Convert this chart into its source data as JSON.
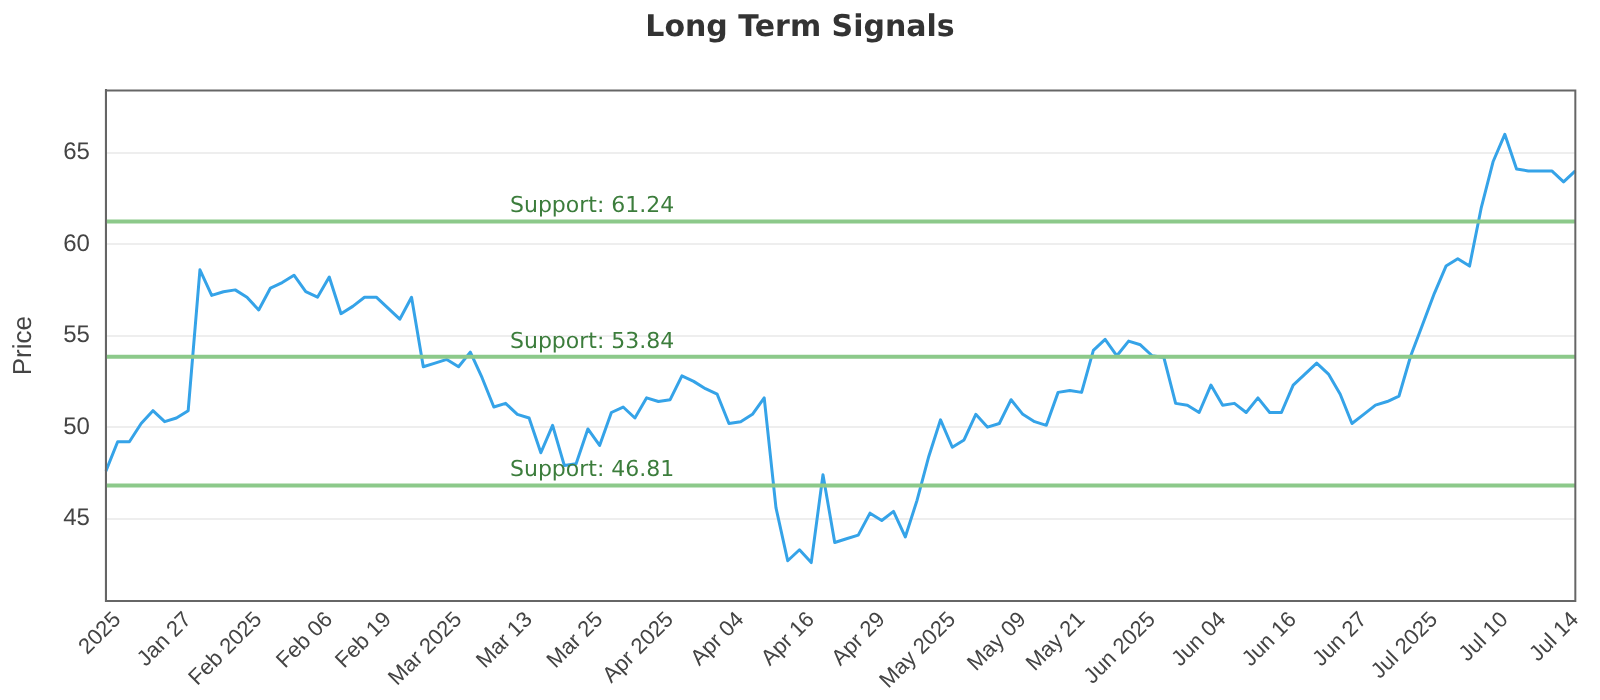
{
  "chart_data": {
    "type": "line",
    "title": "Long Term Signals",
    "ylabel": "Price",
    "categories": [
      null,
      "2025",
      null,
      null,
      null,
      null,
      null,
      "Jan 27",
      null,
      null,
      null,
      null,
      null,
      "Feb 2025",
      null,
      null,
      null,
      null,
      null,
      "Feb 06",
      null,
      null,
      null,
      null,
      "Feb 19",
      null,
      null,
      null,
      null,
      null,
      "Mar 2025",
      null,
      null,
      null,
      null,
      null,
      "Mar 13",
      null,
      null,
      null,
      null,
      null,
      "Mar 25",
      null,
      null,
      null,
      null,
      null,
      "Apr 2025",
      null,
      null,
      null,
      null,
      null,
      "Apr 04",
      null,
      null,
      null,
      null,
      null,
      "Apr 16",
      null,
      null,
      null,
      null,
      null,
      "Apr 29",
      null,
      null,
      null,
      null,
      null,
      "May 2025",
      null,
      null,
      null,
      null,
      null,
      "May 09",
      null,
      null,
      null,
      null,
      "May 21",
      null,
      null,
      null,
      null,
      null,
      "Jun 2025",
      null,
      null,
      null,
      null,
      null,
      "Jun 04",
      null,
      null,
      null,
      null,
      null,
      "Jun 16",
      null,
      null,
      null,
      null,
      null,
      "Jun 27",
      null,
      null,
      null,
      null,
      null,
      "Jul 2025",
      null,
      null,
      null,
      null,
      null,
      "Jul 10",
      null,
      null,
      null,
      null,
      null,
      "Jul 14"
    ],
    "series": [
      {
        "color": "#35a3e8",
        "values": [
          47.6,
          49.2,
          49.2,
          50.2,
          50.9,
          50.3,
          50.5,
          50.9,
          58.6,
          57.2,
          57.4,
          57.5,
          57.1,
          56.4,
          57.6,
          57.9,
          58.3,
          57.4,
          57.1,
          58.2,
          56.2,
          56.6,
          57.1,
          57.1,
          56.5,
          55.9,
          57.1,
          53.3,
          53.5,
          53.7,
          53.3,
          54.1,
          52.7,
          51.1,
          51.3,
          50.7,
          50.5,
          48.6,
          50.1,
          47.9,
          48.0,
          49.9,
          49.0,
          50.8,
          51.1,
          50.5,
          51.6,
          51.4,
          51.5,
          52.8,
          52.5,
          52.1,
          51.8,
          50.2,
          50.3,
          50.7,
          51.6,
          45.6,
          42.7,
          43.3,
          42.6,
          47.4,
          43.7,
          43.9,
          44.1,
          45.3,
          44.9,
          45.4,
          44.0,
          46.0,
          48.4,
          50.4,
          48.9,
          49.3,
          50.7,
          50.0,
          50.2,
          51.5,
          50.7,
          50.3,
          50.1,
          51.9,
          52.0,
          51.9,
          54.2,
          54.8,
          53.9,
          54.7,
          54.5,
          53.9,
          53.8,
          51.3,
          51.2,
          50.8,
          52.3,
          51.2,
          51.3,
          50.8,
          51.6,
          50.8,
          50.8,
          52.3,
          52.9,
          53.5,
          52.9,
          51.8,
          50.2,
          50.7,
          51.2,
          51.4,
          51.7,
          53.9,
          55.6,
          57.3,
          58.8,
          59.2,
          58.8,
          62.0,
          64.5,
          66.0,
          64.1,
          64.0,
          64.0,
          64.0,
          63.4,
          64.0
        ]
      }
    ],
    "ylim": [
      40.5,
      68.4
    ],
    "yticks": [
      45,
      50,
      55,
      60,
      65
    ],
    "grid": "y",
    "legend": false,
    "marker": "none",
    "line_style": "solid",
    "ref_lines": [
      {
        "axis": "y",
        "value": 61.24,
        "label": "Support: 61.24",
        "color": "#8cc98a"
      },
      {
        "axis": "y",
        "value": 53.84,
        "label": "Support: 53.84",
        "color": "#8cc98a"
      },
      {
        "axis": "y",
        "value": 46.81,
        "label": "Support: 46.81",
        "color": "#8cc98a"
      }
    ]
  }
}
